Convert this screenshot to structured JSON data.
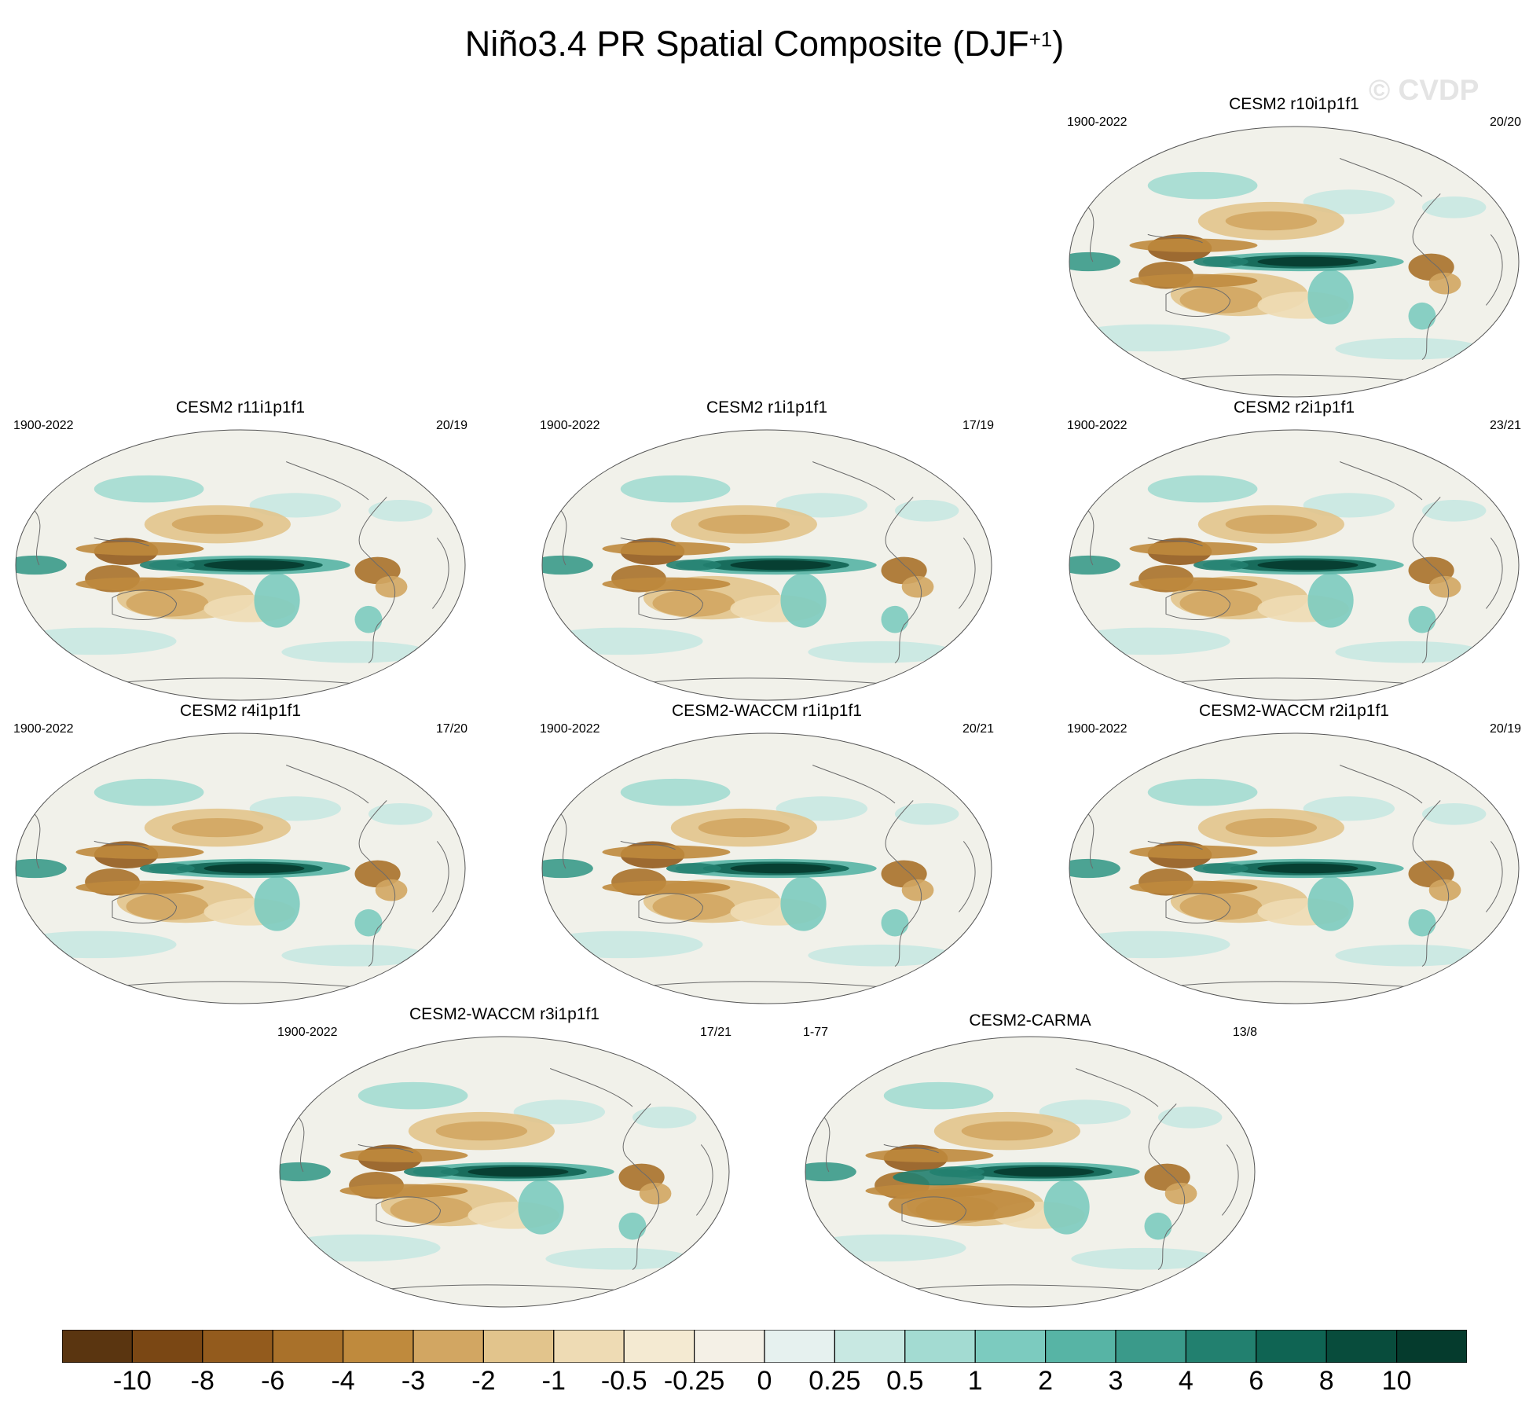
{
  "title": "Niño3.4 PR Spatial Composite (DJF",
  "title_superscript": "+1",
  "title_close": ")",
  "watermark": "© CVDP",
  "chart_data": {
    "type": "heatmap",
    "title": "Niño3.4 PR Spatial Composite (DJF+1)",
    "projection": "global ellipse map, Pacific-centered",
    "panels": [
      {
        "name": "CESM2 r10i1p1f1",
        "period": "1900-2022",
        "count": "20/20"
      },
      {
        "name": "CESM2 r11i1p1f1",
        "period": "1900-2022",
        "count": "20/19"
      },
      {
        "name": "CESM2 r1i1p1f1",
        "period": "1900-2022",
        "count": "17/19"
      },
      {
        "name": "CESM2 r2i1p1f1",
        "period": "1900-2022",
        "count": "23/21"
      },
      {
        "name": "CESM2 r4i1p1f1",
        "period": "1900-2022",
        "count": "17/20"
      },
      {
        "name": "CESM2-WACCM r1i1p1f1",
        "period": "1900-2022",
        "count": "20/21"
      },
      {
        "name": "CESM2-WACCM r2i1p1f1",
        "period": "1900-2022",
        "count": "20/19"
      },
      {
        "name": "CESM2-WACCM r3i1p1f1",
        "period": "1900-2022",
        "count": "17/21"
      },
      {
        "name": "CESM2-CARMA",
        "period": "1-77",
        "count": "13/8"
      }
    ],
    "colorbar": {
      "labels": [
        "-10",
        "-8",
        "-6",
        "-4",
        "-3",
        "-2",
        "-1",
        "-0.5",
        "-0.25",
        "0",
        "0.25",
        "0.5",
        "1",
        "2",
        "3",
        "4",
        "6",
        "8",
        "10"
      ],
      "colors": [
        "#5a3510",
        "#7a4714",
        "#935b1d",
        "#a9712a",
        "#bf8a3d",
        "#d2a662",
        "#e2c48c",
        "#eedbb4",
        "#f4ead2",
        "#f4f0e6",
        "#e6f1ef",
        "#c8e8e2",
        "#a3dbd2",
        "#7ccbbf",
        "#57b4a5",
        "#3a9a8a",
        "#22806f",
        "#0f6453",
        "#084c3c",
        "#053b2d"
      ]
    }
  }
}
